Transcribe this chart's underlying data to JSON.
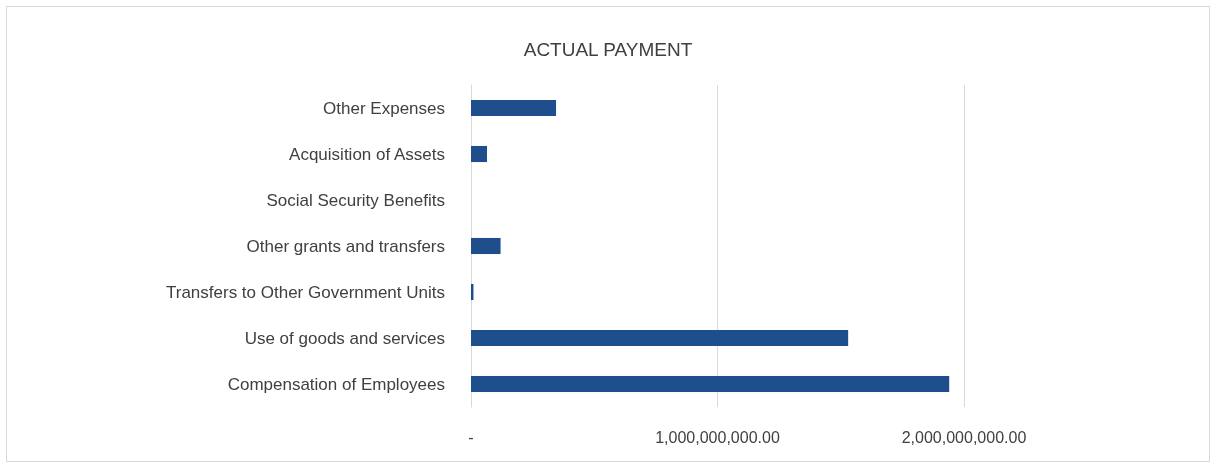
{
  "chart_data": {
    "type": "bar",
    "orientation": "horizontal",
    "title": "ACTUAL PAYMENT",
    "categories": [
      "Other Expenses",
      "Acquisition of Assets",
      "Social Security Benefits",
      "Other grants and transfers",
      "Transfers to Other Government Units",
      "Use of goods and services",
      "Compensation of Employees"
    ],
    "values": [
      345000000,
      65000000,
      0,
      120000000,
      10000000,
      1530000000,
      1940000000
    ],
    "color": "#1f4e8c",
    "xlim": [
      0,
      2000000000
    ],
    "xticks": [
      {
        "value": 0,
        "label": "-"
      },
      {
        "value": 1000000000,
        "label": "1,000,000,000.00"
      },
      {
        "value": 2000000000,
        "label": "2,000,000,000.00"
      }
    ],
    "grid": "x"
  }
}
